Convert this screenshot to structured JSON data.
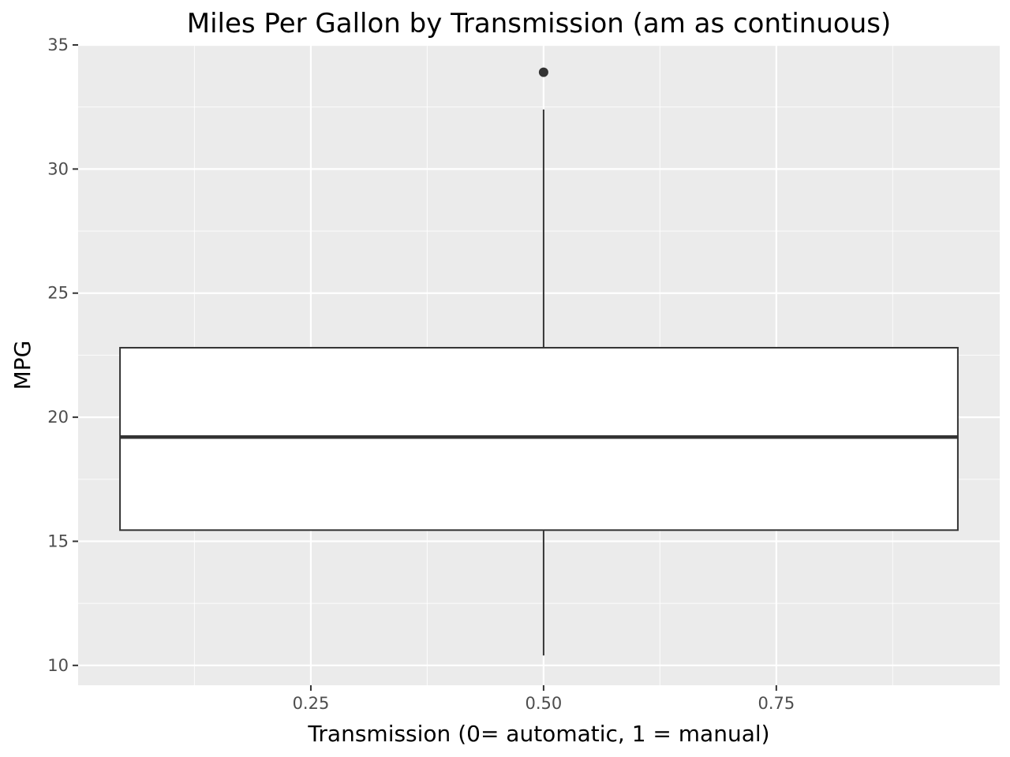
{
  "chart_data": {
    "type": "boxplot",
    "title": "Miles Per Gallon by Transmission (am as continuous)",
    "xlabel": "Transmission (0= automatic, 1 = manual)",
    "ylabel": "MPG",
    "xlim": [
      0.0,
      0.99
    ],
    "ylim": [
      9.2,
      35.0
    ],
    "x_ticks": [
      {
        "value": 0.25,
        "label": "0.25"
      },
      {
        "value": 0.5,
        "label": "0.50"
      },
      {
        "value": 0.75,
        "label": "0.75"
      }
    ],
    "y_ticks": [
      {
        "value": 10,
        "label": "10"
      },
      {
        "value": 15,
        "label": "15"
      },
      {
        "value": 20,
        "label": "20"
      },
      {
        "value": 25,
        "label": "25"
      },
      {
        "value": 30,
        "label": "30"
      },
      {
        "value": 35,
        "label": "35"
      }
    ],
    "boxes": [
      {
        "x": 0.5,
        "box_left": 0.045,
        "box_right": 0.945,
        "min": 10.4,
        "q1": 15.45,
        "median": 19.2,
        "q3": 22.8,
        "max": 32.4,
        "outliers": [
          33.9
        ]
      }
    ],
    "grid": true,
    "legend": "none"
  },
  "colors": {
    "panel_background": "#ebebeb",
    "grid_major": "#ffffff",
    "box_fill": "#ffffff",
    "box_stroke": "#333333",
    "tick_label": "#4d4d4d"
  }
}
